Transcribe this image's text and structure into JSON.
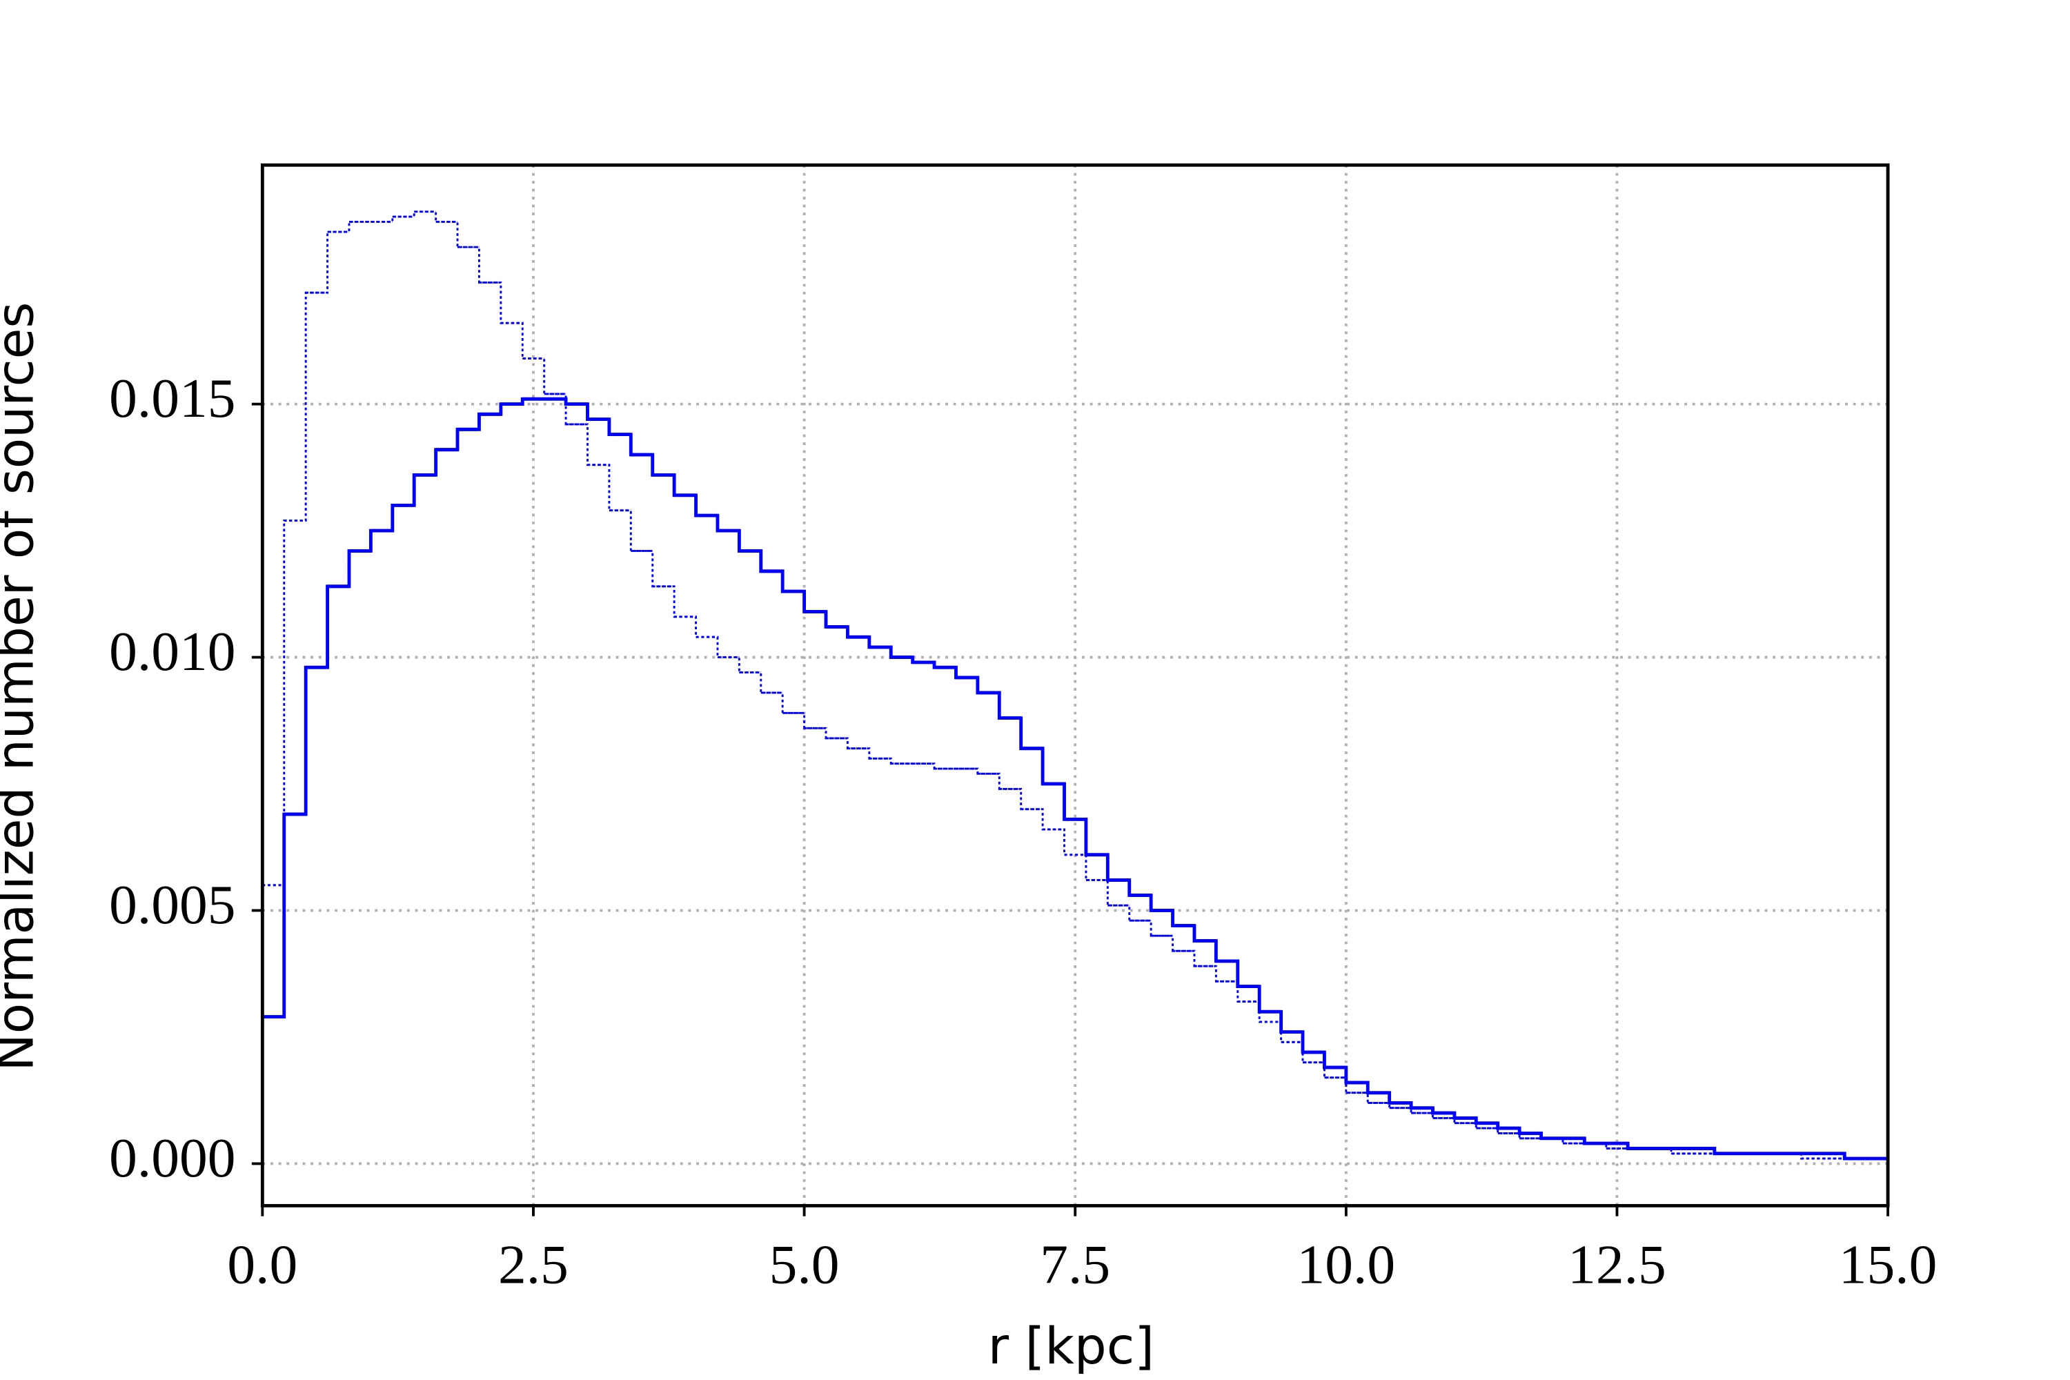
{
  "chart_data": {
    "type": "histogram",
    "xlabel": "r [kpc]",
    "ylabel": "Normalized number of sources",
    "bins": [
      0,
      0.2,
      0.4,
      0.6,
      0.8,
      1,
      1.2,
      1.4,
      1.6,
      1.8,
      2,
      2.2,
      2.4,
      2.6,
      2.8,
      3,
      3.2,
      3.4,
      3.6,
      3.8,
      4,
      4.2,
      4.4,
      4.6,
      4.8,
      5,
      5.2,
      5.4,
      5.6,
      5.8,
      6,
      6.2,
      6.4,
      6.6,
      6.8,
      7,
      7.2,
      7.4,
      7.6,
      7.8,
      8,
      8.2,
      8.4,
      8.6,
      8.8,
      9,
      9.2,
      9.4,
      9.6,
      9.8,
      10,
      10.2,
      10.4,
      10.6,
      10.8,
      11,
      11.2,
      11.4,
      11.6,
      11.8,
      12,
      12.2,
      12.4,
      12.6,
      12.8,
      13,
      13.2,
      13.4,
      13.6,
      13.8,
      14,
      14.2,
      14.4,
      14.6,
      14.8,
      15
    ],
    "series": [
      {
        "color": "#0000ff",
        "linestyle": "solid",
        "values": [
          0.0029,
          0.0069,
          0.0098,
          0.0114,
          0.0121,
          0.0125,
          0.013,
          0.0136,
          0.0141,
          0.0145,
          0.0148,
          0.015,
          0.0151,
          0.0151,
          0.015,
          0.0147,
          0.0144,
          0.014,
          0.0136,
          0.0132,
          0.0128,
          0.0125,
          0.0121,
          0.0117,
          0.0113,
          0.0109,
          0.0106,
          0.0104,
          0.0102,
          0.01,
          0.0099,
          0.0098,
          0.0096,
          0.0093,
          0.0088,
          0.0082,
          0.0075,
          0.0068,
          0.0061,
          0.0056,
          0.0053,
          0.005,
          0.0047,
          0.0044,
          0.004,
          0.0035,
          0.003,
          0.0026,
          0.0022,
          0.0019,
          0.0016,
          0.0014,
          0.0012,
          0.0011,
          0.001,
          0.0009,
          0.0008,
          0.0007,
          0.0006,
          0.0005,
          0.0005,
          0.0004,
          0.0004,
          0.0003,
          0.0003,
          0.0003,
          0.0003,
          0.0002,
          0.0002,
          0.0002,
          0.0002,
          0.0002,
          0.0002,
          0.0001,
          0.0001
        ]
      },
      {
        "color": "#0000ff",
        "linestyle": "dotted",
        "values": [
          0.0055,
          0.0127,
          0.0172,
          0.0184,
          0.0186,
          0.0186,
          0.0187,
          0.0188,
          0.0186,
          0.0181,
          0.0174,
          0.0166,
          0.0159,
          0.0152,
          0.0146,
          0.0138,
          0.0129,
          0.0121,
          0.0114,
          0.0108,
          0.0104,
          0.01,
          0.0097,
          0.0093,
          0.0089,
          0.0086,
          0.0084,
          0.0082,
          0.008,
          0.0079,
          0.0079,
          0.0078,
          0.0078,
          0.0077,
          0.0074,
          0.007,
          0.0066,
          0.0061,
          0.0056,
          0.0051,
          0.0048,
          0.0045,
          0.0042,
          0.0039,
          0.0036,
          0.0032,
          0.0028,
          0.0024,
          0.002,
          0.0017,
          0.0014,
          0.0012,
          0.0011,
          0.001,
          0.0009,
          0.0008,
          0.0007,
          0.0006,
          0.0005,
          0.0005,
          0.0004,
          0.0004,
          0.0003,
          0.0003,
          0.0003,
          0.0002,
          0.0002,
          0.0002,
          0.0002,
          0.0002,
          0.0002,
          0.0001,
          0.0001,
          0.0001,
          0.0001
        ]
      }
    ],
    "xlim": [
      0,
      15
    ],
    "ylim": [
      -0.00083,
      0.01972
    ],
    "xticks": [
      {
        "value": 0,
        "label": "0.0"
      },
      2.5,
      {
        "value": 5,
        "label": "5.0"
      },
      7.5,
      {
        "value": 10,
        "label": "10.0"
      },
      12.5,
      {
        "value": 15,
        "label": "15.0"
      }
    ],
    "yticks": [
      {
        "value": 0,
        "label": "0.000"
      },
      0.005,
      {
        "value": 0.01,
        "label": "0.010"
      },
      0.015
    ],
    "grid": true
  }
}
